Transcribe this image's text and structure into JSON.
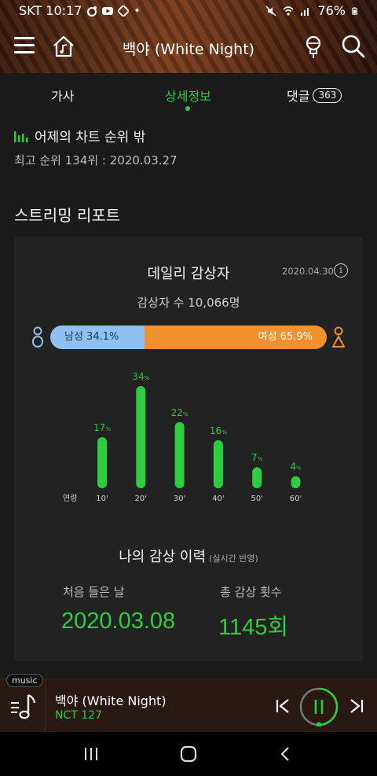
{
  "status_bar": {
    "carrier_time": "SKT 10:17",
    "battery": "76%"
  },
  "header": {
    "title": "백야 (White Night)"
  },
  "tabs": [
    {
      "label": "가사"
    },
    {
      "label": "상세정보"
    },
    {
      "label": "댓글",
      "count": "363"
    }
  ],
  "chart_rank": {
    "label": "어제의 차트 순위 밖",
    "best": "최고 순위 134위 : 2020.03.27"
  },
  "report": {
    "title": "스트리밍 리포트",
    "daily_title": "데일리 감상자",
    "date": "2020.04.30",
    "info_icon_text": "i",
    "listeners": "감상자 수 10,066명",
    "male_label": "남성 34.1%",
    "female_label": "여성 65.9%",
    "male_pct": 34.1
  },
  "chart_data": {
    "type": "bar",
    "categories": [
      "10'",
      "20'",
      "30'",
      "40'",
      "50'",
      "60'"
    ],
    "values": [
      17,
      34,
      22,
      16,
      7,
      4
    ],
    "unit": "%",
    "xlabel": "연령",
    "ylim": [
      0,
      34
    ]
  },
  "history": {
    "title": "나의 감상 이력",
    "note": "(실시간 반영)",
    "first_label": "처음 들은 날",
    "first_value": "2020.03.08",
    "total_label": "총 감상 횟수",
    "total_value": "1145회"
  },
  "player": {
    "tag": "music",
    "song": "백야 (White Night)",
    "artist": "NCT 127"
  },
  "colors": {
    "accent": "#2ecc40",
    "male": "#8ec0f0",
    "female": "#f0902e"
  }
}
